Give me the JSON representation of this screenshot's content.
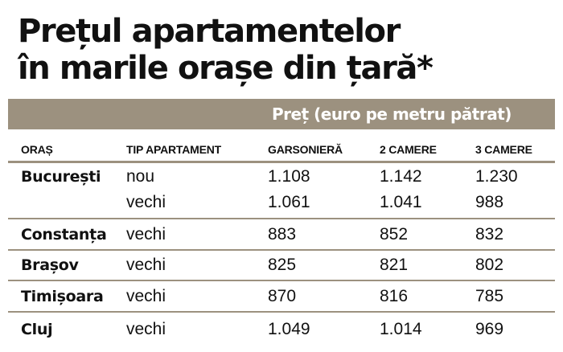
{
  "title_lines": [
    "Prețul apartamentelor",
    "în marile orașe din țară*"
  ],
  "band_label": "Preț (euro pe metru pătrat)",
  "colors": {
    "band": "#9c917f",
    "text": "#111111",
    "band_text": "#ffffff"
  },
  "chart_data": {
    "type": "table",
    "title": "Prețul apartamentelor în marile orașe din țară*",
    "group_header": "Preț (euro pe metru pătrat)",
    "columns": [
      "ORAȘ",
      "TIP APARTAMENT",
      "GARSONIERĂ",
      "2 CAMERE",
      "3 CAMERE"
    ],
    "rows": [
      {
        "city": "București",
        "type": "nou",
        "garsoniera": "1.108",
        "camere2": "1.142",
        "camere3": "1.230"
      },
      {
        "city": "",
        "type": "vechi",
        "garsoniera": "1.061",
        "camere2": "1.041",
        "camere3": "988"
      },
      {
        "city": "Constanța",
        "type": "vechi",
        "garsoniera": "883",
        "camere2": "852",
        "camere3": "832"
      },
      {
        "city": "Brașov",
        "type": "vechi",
        "garsoniera": "825",
        "camere2": "821",
        "camere3": "802"
      },
      {
        "city": "Timișoara",
        "type": "vechi",
        "garsoniera": "870",
        "camere2": "816",
        "camere3": "785"
      },
      {
        "city": "Cluj",
        "type": "vechi",
        "garsoniera": "1.049",
        "camere2": "1.014",
        "camere3": "969"
      }
    ]
  }
}
